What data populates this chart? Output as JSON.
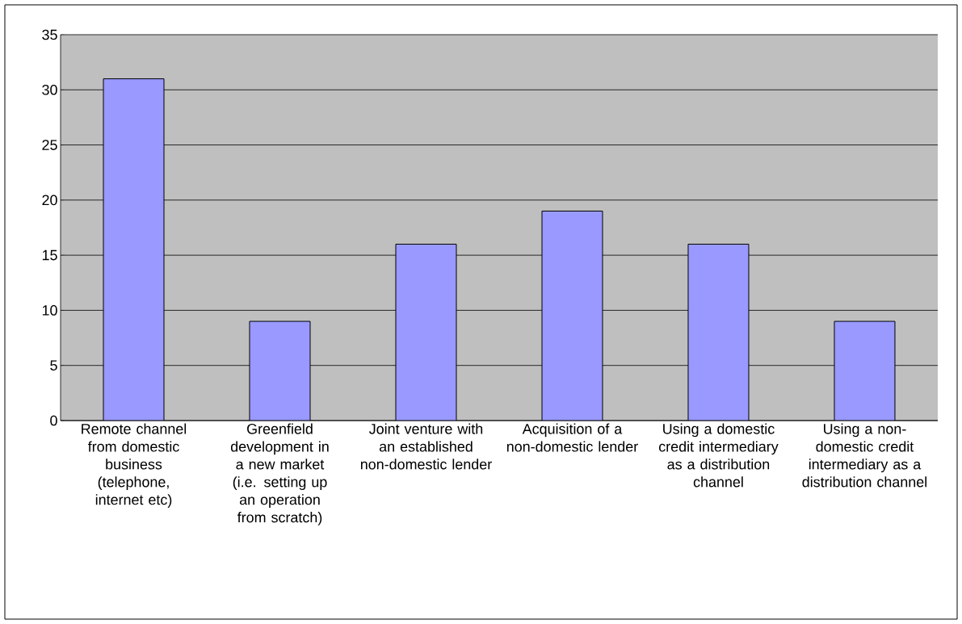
{
  "chart_data": {
    "type": "bar",
    "categories": [
      "Remote channel from domestic business (telephone, internet etc)",
      "Greenfield development in a new market (i.e. setting up an operation from scratch)",
      "Joint venture with an established non-domestic lender",
      "Acquisition of a non-domestic lender",
      "Using a domestic credit intermediary as a distribution channel",
      "Using a non-domestic credit intermediary as a distribution channel"
    ],
    "values": [
      31,
      9,
      16,
      19,
      16,
      9
    ],
    "color": "#9999ff",
    "ylim": [
      0,
      35
    ],
    "yticks": [
      0,
      5,
      10,
      15,
      20,
      25,
      30,
      35
    ],
    "grid": "y"
  }
}
